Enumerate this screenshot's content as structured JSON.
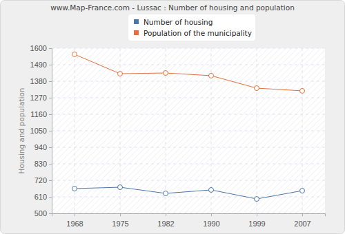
{
  "chart_data": {
    "type": "line",
    "title": "www.Map-France.com - Lussac : Number of housing and population",
    "y_label": "Housing and population",
    "categories": [
      "1968",
      "1975",
      "1982",
      "1990",
      "1999",
      "2007"
    ],
    "series": [
      {
        "name": "Number of housing",
        "color": "#4a76a8",
        "marker": "circle",
        "values": [
          665,
          674,
          633,
          656,
          596,
          651
        ]
      },
      {
        "name": "Population of the municipality",
        "color": "#e0703a",
        "marker": "circle",
        "values": [
          1559,
          1430,
          1435,
          1417,
          1334,
          1316
        ]
      }
    ],
    "ylim": [
      500,
      1600
    ],
    "yticks": [
      500,
      610,
      720,
      830,
      940,
      1050,
      1160,
      1270,
      1380,
      1490,
      1600
    ],
    "grid": true,
    "legend": "top"
  }
}
